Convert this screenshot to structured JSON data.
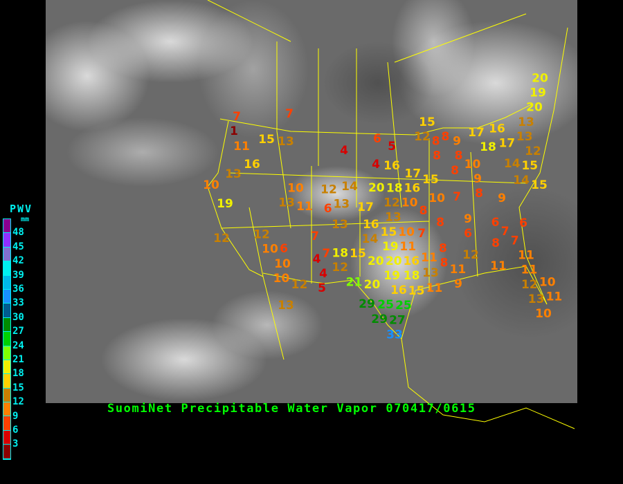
{
  "title": "SuomiNet Precipitable Water Vapor 070417/0615",
  "legend": {
    "title": "PWV",
    "unit": "mm",
    "labels": [
      "48",
      "45",
      "42",
      "39",
      "36",
      "33",
      "30",
      "27",
      "24",
      "21",
      "18",
      "15",
      "12",
      "9",
      "6",
      "3"
    ],
    "colors": [
      "#8a0090",
      "#9030ff",
      "#8070d0",
      "#00f0f0",
      "#00b8e8",
      "#1890ff",
      "#005c90",
      "#008c00",
      "#00d000",
      "#80ff00",
      "#f0f000",
      "#ffd000",
      "#c88000",
      "#ff8000",
      "#ff4000",
      "#d80000",
      "#8b0000"
    ]
  },
  "border_color": "#ffff00",
  "stations": [
    7,
    1,
    7,
    15,
    13,
    11,
    16,
    13,
    10,
    19,
    4,
    6,
    5,
    4,
    16,
    10,
    13,
    11,
    12,
    14,
    13,
    6,
    17,
    20,
    18,
    20,
    19,
    20,
    13,
    13,
    15,
    12,
    8,
    8,
    8,
    9,
    8,
    8,
    10,
    17,
    16,
    17,
    18,
    12,
    15,
    14,
    14,
    15,
    17,
    15,
    16,
    9,
    8,
    9,
    10,
    7,
    10,
    8,
    12,
    12,
    10,
    6,
    10,
    10,
    12,
    13,
    7,
    7,
    4,
    12,
    4,
    5,
    13,
    18,
    15,
    14,
    19,
    21,
    20,
    29,
    25,
    16,
    12,
    13,
    10,
    9,
    8,
    6,
    6,
    7,
    8,
    7,
    6,
    7,
    15,
    11,
    19,
    20,
    16,
    11,
    8,
    8,
    12,
    20,
    18,
    13,
    11,
    11,
    11,
    11,
    12,
    10,
    9,
    16,
    15,
    11,
    13,
    11,
    10,
    25,
    29,
    27,
    33
  ]
}
